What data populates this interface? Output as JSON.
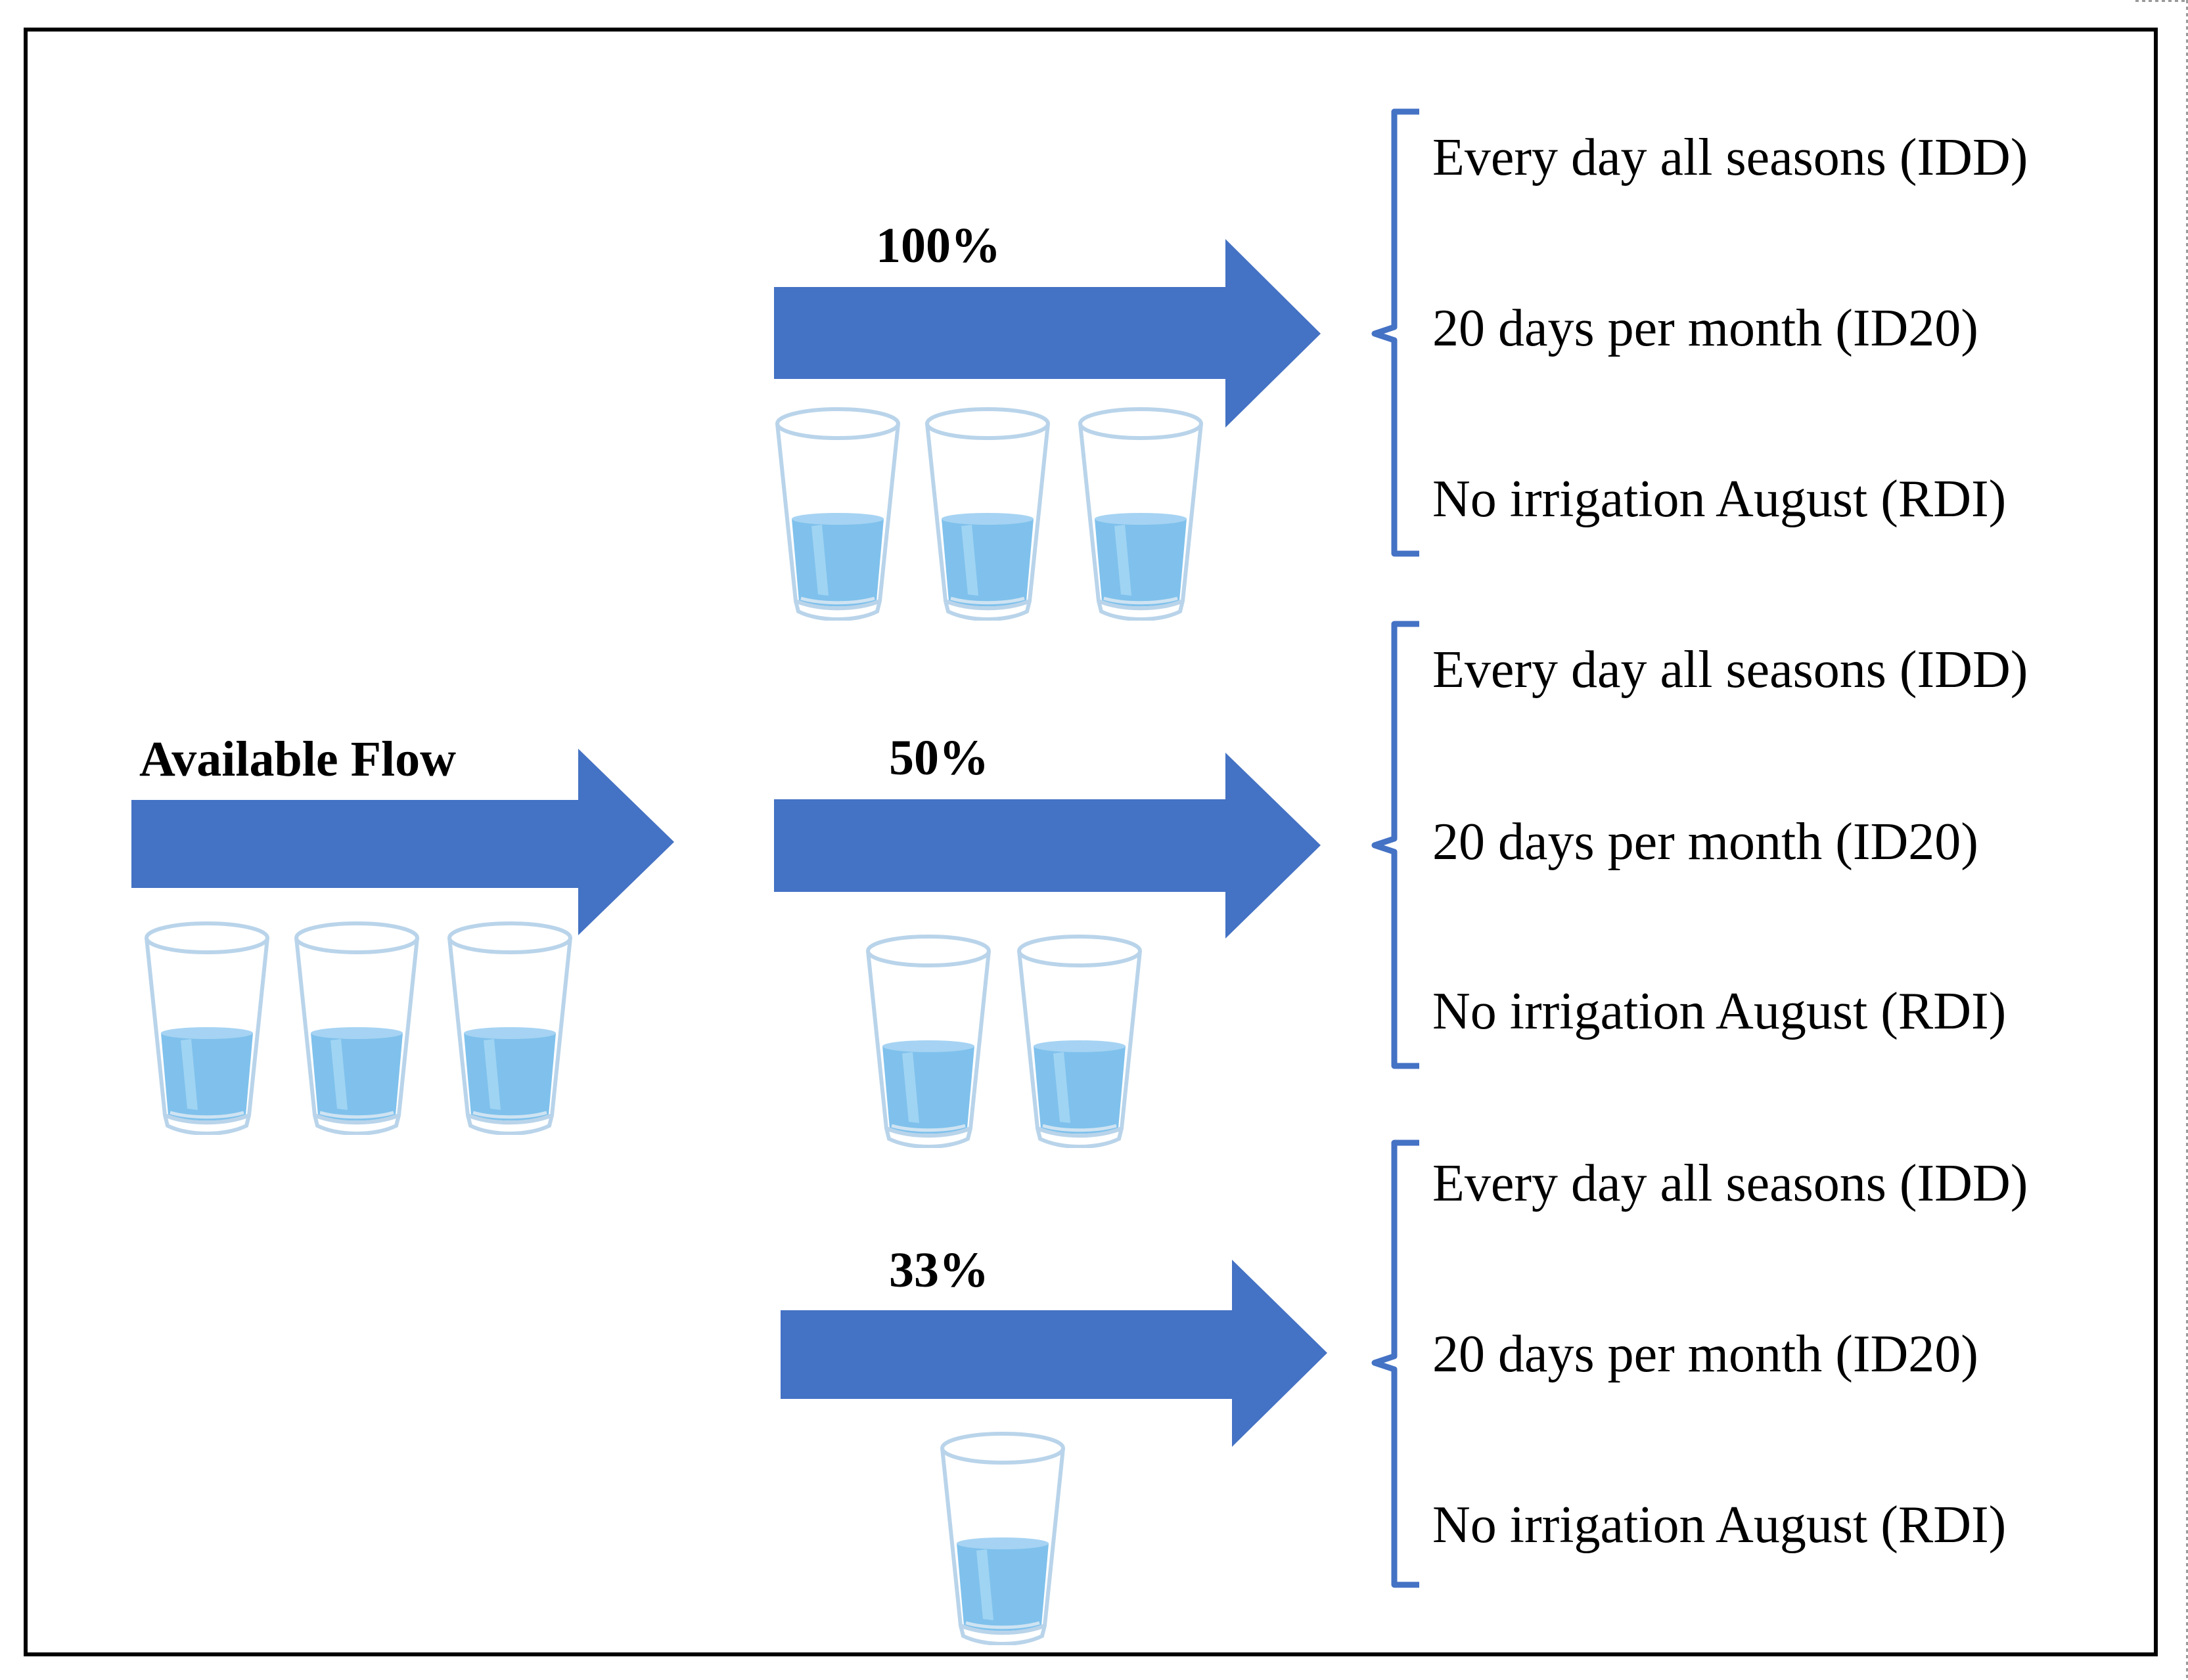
{
  "source": {
    "label": "Available Flow",
    "glass_count": 3
  },
  "branches": [
    {
      "percent_label": "100%",
      "glass_count": 3,
      "options": [
        "Every day all seasons (IDD)",
        "20 days per month (ID20)",
        "No irrigation August (RDI)"
      ]
    },
    {
      "percent_label": "50%",
      "glass_count": 2,
      "options": [
        "Every day all seasons (IDD)",
        "20 days per month (ID20)",
        "No irrigation August (RDI)"
      ]
    },
    {
      "percent_label": "33%",
      "glass_count": 1,
      "options": [
        "Every day all seasons (IDD)",
        "20 days per month (ID20)",
        "No irrigation August (RDI)"
      ]
    }
  ],
  "colors": {
    "arrow_fill": "#4472C4",
    "brace": "#4472C4",
    "water": "#7FC1EC",
    "glass_outline": "#B9D4EA",
    "frame": "#000000"
  },
  "icons": {
    "glass": "water-glass-icon",
    "arrow": "right-arrow",
    "brace": "left-curly-brace"
  }
}
